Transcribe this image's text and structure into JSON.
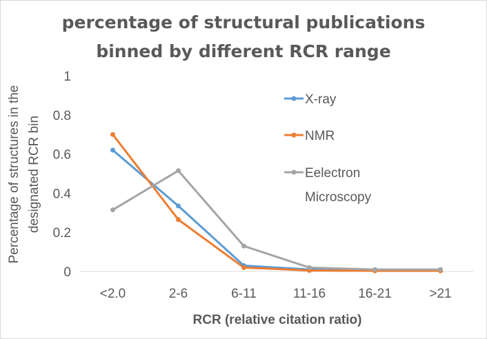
{
  "chart_data": {
    "type": "line",
    "title_lines": [
      "percentage of structural publications",
      "binned by different RCR range"
    ],
    "xlabel": "RCR (relative citation ratio)",
    "ylabel_lines": [
      "Percentage of structures in the",
      "designated RCR bin"
    ],
    "categories": [
      "<2.0",
      "2-6",
      "6-11",
      "11-16",
      "16-21",
      ">21"
    ],
    "ylim": [
      0,
      1
    ],
    "yticks": [
      "0",
      "0.2",
      "0.4",
      "0.6",
      "0.8",
      "1"
    ],
    "grid": false,
    "legend_position": "right",
    "series": [
      {
        "name": "X-ray",
        "name_lines": [
          "X-ray"
        ],
        "color": "#5b9bd5",
        "values": [
          0.62,
          0.335,
          0.03,
          0.01,
          0.005,
          0.005
        ]
      },
      {
        "name": "NMR",
        "name_lines": [
          "NMR"
        ],
        "color": "#ed7d31",
        "values": [
          0.7,
          0.265,
          0.02,
          0.005,
          0.003,
          0.003
        ]
      },
      {
        "name": "Eelectron Microscopy",
        "name_lines": [
          "Eelectron",
          "Microscopy"
        ],
        "color": "#a5a5a5",
        "values": [
          0.315,
          0.515,
          0.13,
          0.02,
          0.01,
          0.01
        ]
      }
    ]
  }
}
